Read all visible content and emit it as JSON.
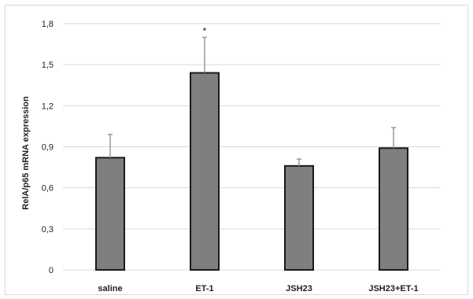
{
  "chart_data": {
    "type": "bar",
    "title": "",
    "xlabel": "",
    "ylabel": "RelA/p65 mRNA expression",
    "categories": [
      "saline",
      "ET-1",
      "JSH23",
      "JSH23+ET-1"
    ],
    "values": [
      0.82,
      1.44,
      0.76,
      0.89
    ],
    "error_upper": [
      0.17,
      0.26,
      0.05,
      0.15
    ],
    "significance": [
      "",
      "*",
      "",
      ""
    ],
    "ylim": [
      0,
      1.8
    ],
    "yticks": [
      0,
      0.3,
      0.6,
      0.9,
      1.2,
      1.5,
      1.8
    ],
    "ytick_labels": [
      "0",
      "0,3",
      "0,6",
      "0,9",
      "1,2",
      "1,5",
      "1,8"
    ],
    "grid": true,
    "bar_color": "#7f7f7f",
    "bar_edge_color": "#1a1a1a",
    "errorbar_color": "#999999",
    "grid_color": "#d9d9d9"
  }
}
